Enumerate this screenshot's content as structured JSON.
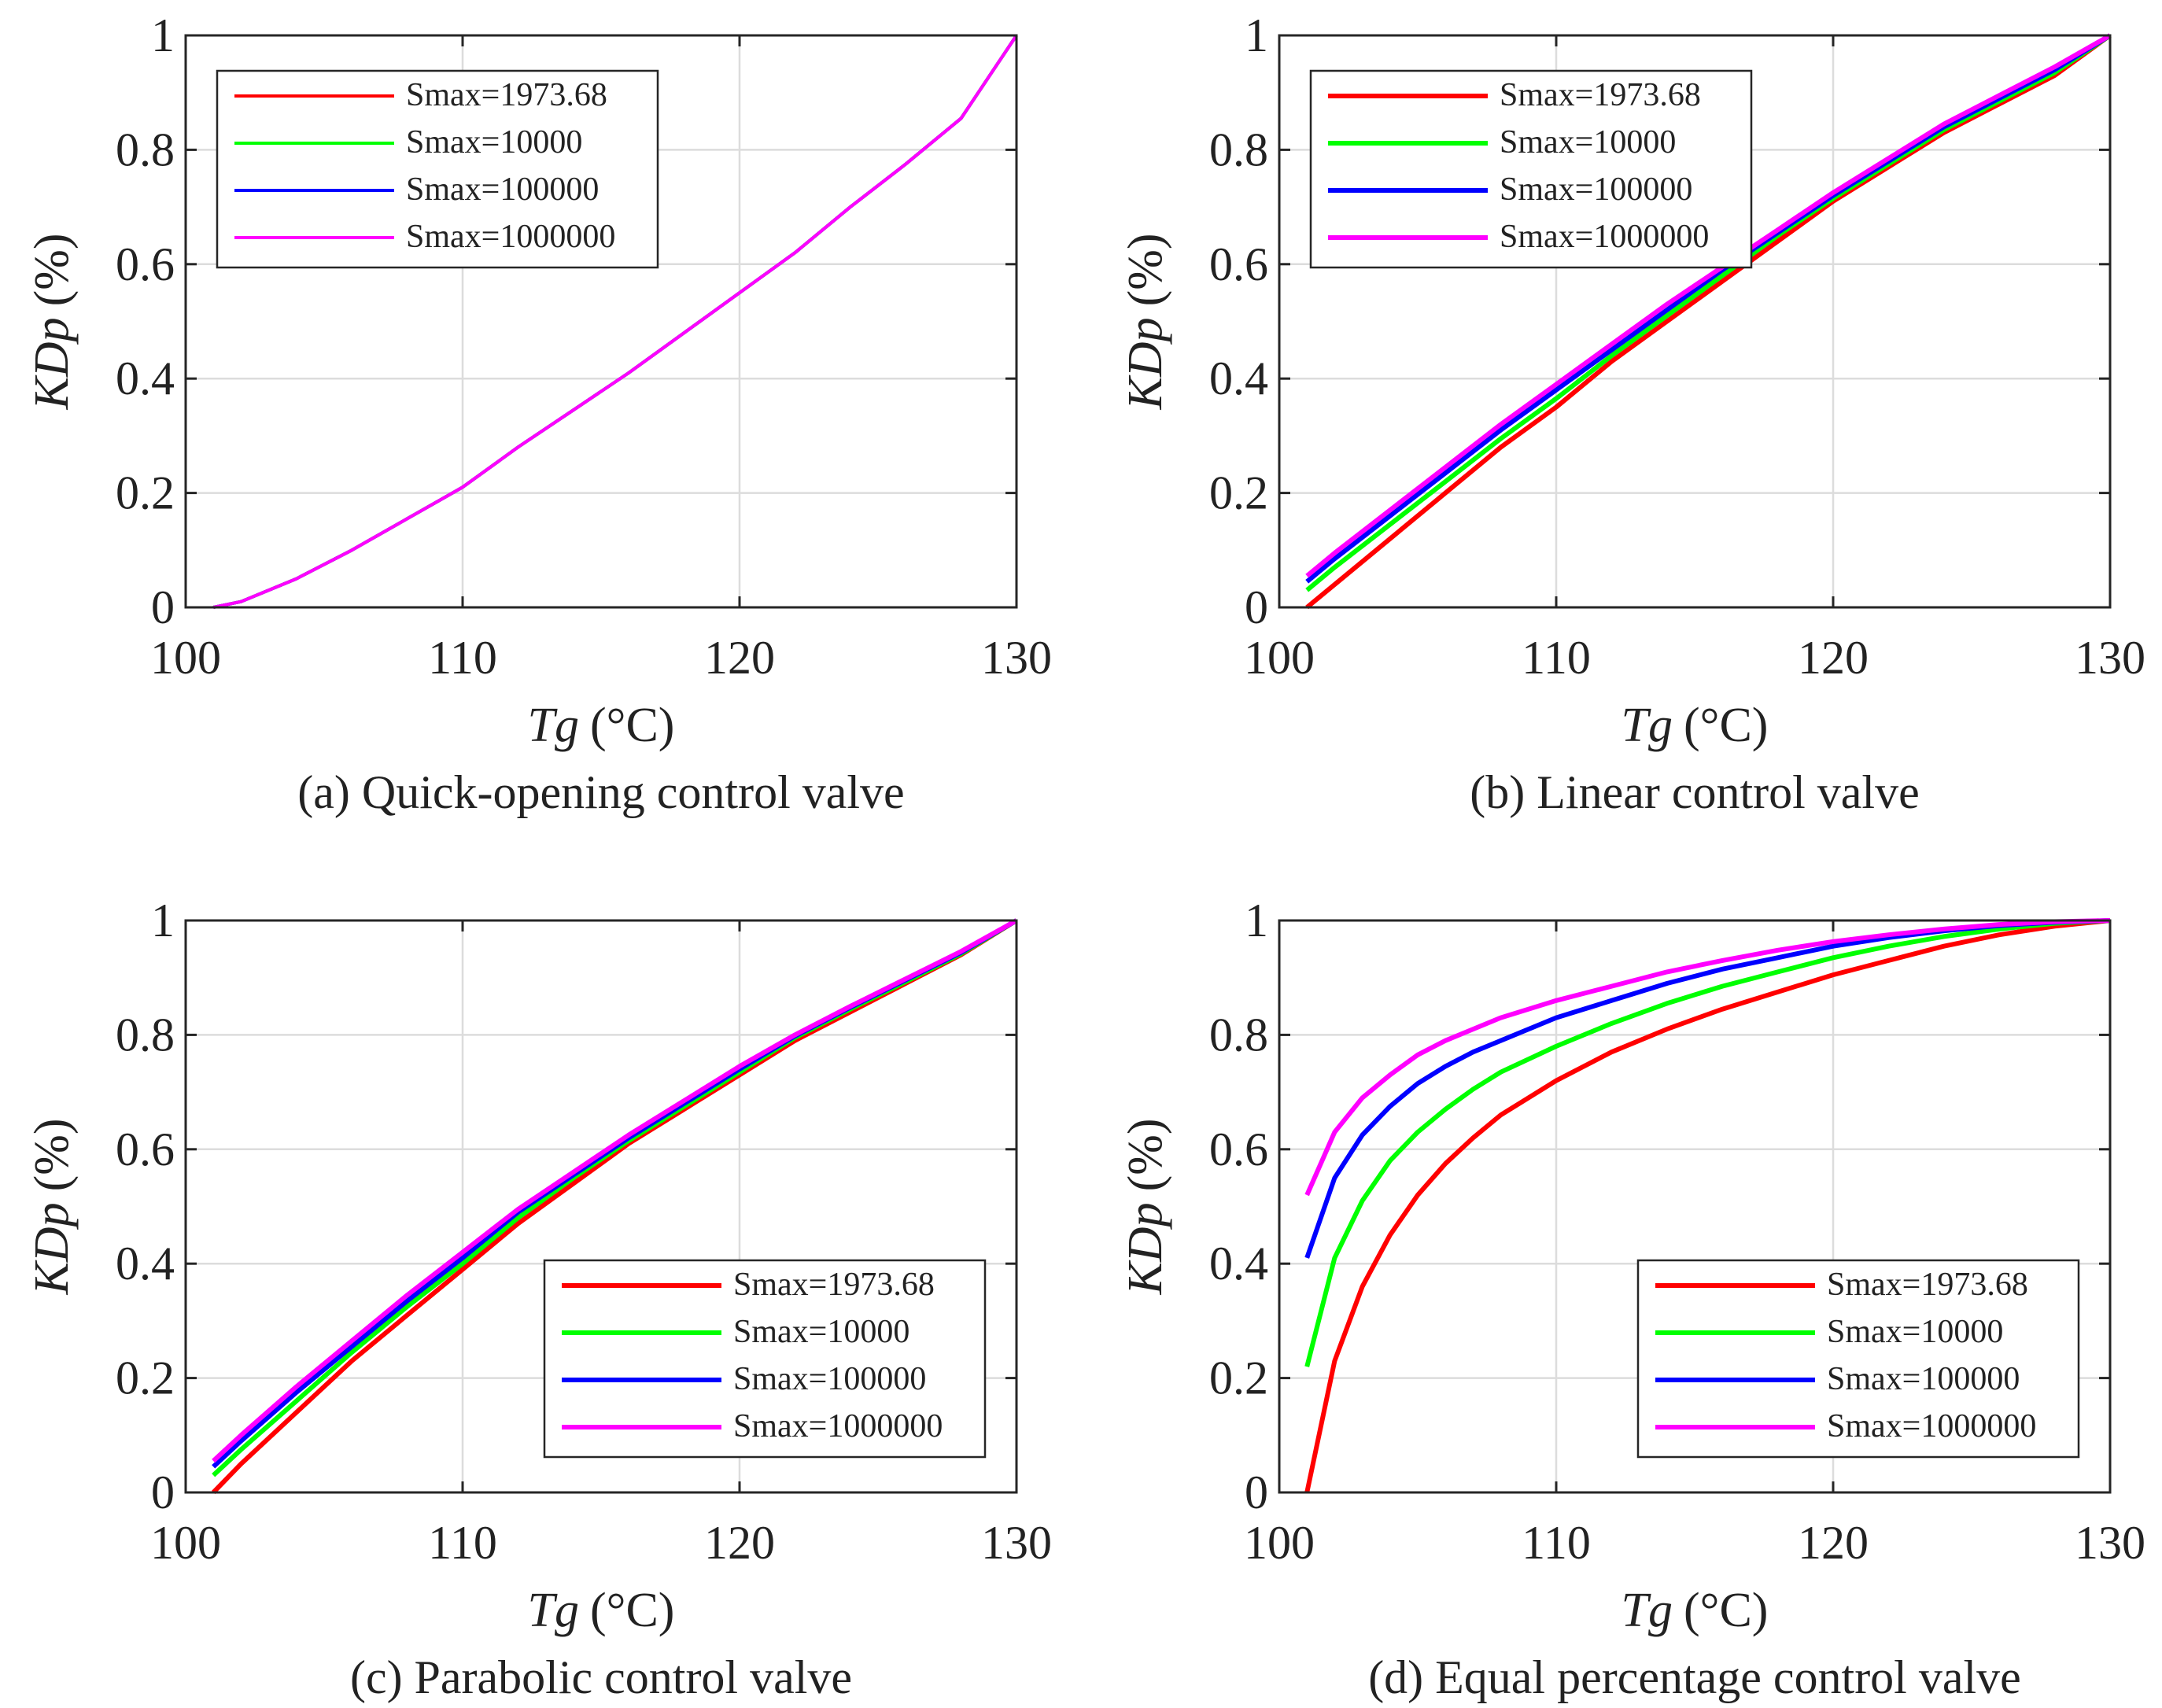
{
  "chart_data": [
    {
      "type": "line",
      "caption": "(a) Quick-opening control valve",
      "xlabel": "Tg",
      "xunit": "(°C)",
      "ylabel": "KDp",
      "yunit": "(%)",
      "xlim": [
        100,
        130
      ],
      "ylim": [
        0,
        1
      ],
      "xticks": [
        "100",
        "110",
        "120",
        "130"
      ],
      "yticks": [
        "0",
        "0.2",
        "0.4",
        "0.6",
        "0.8",
        "1"
      ],
      "grid": true,
      "legend_position": "top-left",
      "series": [
        {
          "name": "Smax=1973.68",
          "color": "#ff0000",
          "x": [
            101,
            102,
            104,
            106,
            108,
            110,
            112,
            114,
            116,
            118,
            120,
            122,
            124,
            126,
            128,
            130
          ],
          "y": [
            0,
            0.01,
            0.05,
            0.1,
            0.155,
            0.21,
            0.28,
            0.345,
            0.41,
            0.48,
            0.55,
            0.62,
            0.7,
            0.775,
            0.855,
            1
          ]
        },
        {
          "name": "Smax=10000",
          "color": "#00ff00",
          "x": [
            101,
            102,
            104,
            106,
            108,
            110,
            112,
            114,
            116,
            118,
            120,
            122,
            124,
            126,
            128,
            130
          ],
          "y": [
            0,
            0.01,
            0.05,
            0.1,
            0.155,
            0.21,
            0.28,
            0.345,
            0.41,
            0.48,
            0.55,
            0.62,
            0.7,
            0.775,
            0.855,
            1
          ]
        },
        {
          "name": "Smax=100000",
          "color": "#0000ff",
          "x": [
            101,
            102,
            104,
            106,
            108,
            110,
            112,
            114,
            116,
            118,
            120,
            122,
            124,
            126,
            128,
            130
          ],
          "y": [
            0,
            0.01,
            0.05,
            0.1,
            0.155,
            0.21,
            0.28,
            0.345,
            0.41,
            0.48,
            0.55,
            0.62,
            0.7,
            0.775,
            0.855,
            1
          ]
        },
        {
          "name": "Smax=1000000",
          "color": "#ff00ff",
          "x": [
            101,
            102,
            104,
            106,
            108,
            110,
            112,
            114,
            116,
            118,
            120,
            122,
            124,
            126,
            128,
            130
          ],
          "y": [
            0,
            0.01,
            0.05,
            0.1,
            0.155,
            0.21,
            0.28,
            0.345,
            0.41,
            0.48,
            0.55,
            0.62,
            0.7,
            0.775,
            0.855,
            1
          ]
        }
      ]
    },
    {
      "type": "line",
      "caption": "(b) Linear control valve",
      "xlabel": "Tg",
      "xunit": "(°C)",
      "ylabel": "KDp",
      "yunit": "(%)",
      "xlim": [
        100,
        130
      ],
      "ylim": [
        0,
        1
      ],
      "xticks": [
        "100",
        "110",
        "120",
        "130"
      ],
      "yticks": [
        "0",
        "0.2",
        "0.4",
        "0.6",
        "0.8",
        "1"
      ],
      "grid": true,
      "legend_position": "top-left",
      "series": [
        {
          "name": "Smax=1973.68",
          "color": "#ff0000",
          "x": [
            101,
            102,
            104,
            106,
            108,
            110,
            112,
            114,
            116,
            118,
            120,
            122,
            124,
            126,
            128,
            130
          ],
          "y": [
            0,
            0.04,
            0.12,
            0.2,
            0.28,
            0.35,
            0.43,
            0.5,
            0.57,
            0.64,
            0.71,
            0.77,
            0.83,
            0.88,
            0.93,
            1
          ]
        },
        {
          "name": "Smax=10000",
          "color": "#00ff00",
          "x": [
            101,
            102,
            104,
            106,
            108,
            110,
            112,
            114,
            116,
            118,
            120,
            122,
            124,
            126,
            128,
            130
          ],
          "y": [
            0.03,
            0.07,
            0.145,
            0.22,
            0.295,
            0.365,
            0.44,
            0.51,
            0.58,
            0.65,
            0.715,
            0.775,
            0.835,
            0.885,
            0.935,
            1
          ]
        },
        {
          "name": "Smax=100000",
          "color": "#0000ff",
          "x": [
            101,
            102,
            104,
            106,
            108,
            110,
            112,
            114,
            116,
            118,
            120,
            122,
            124,
            126,
            128,
            130
          ],
          "y": [
            0.045,
            0.085,
            0.16,
            0.235,
            0.31,
            0.38,
            0.45,
            0.52,
            0.59,
            0.655,
            0.72,
            0.78,
            0.84,
            0.89,
            0.94,
            1
          ]
        },
        {
          "name": "Smax=1000000",
          "color": "#ff00ff",
          "x": [
            101,
            102,
            104,
            106,
            108,
            110,
            112,
            114,
            116,
            118,
            120,
            122,
            124,
            126,
            128,
            130
          ],
          "y": [
            0.055,
            0.095,
            0.17,
            0.245,
            0.32,
            0.39,
            0.46,
            0.53,
            0.595,
            0.66,
            0.725,
            0.785,
            0.845,
            0.895,
            0.945,
            1
          ]
        }
      ]
    },
    {
      "type": "line",
      "caption": "(c) Parabolic control valve",
      "xlabel": "Tg",
      "xunit": "(°C)",
      "ylabel": "KDp",
      "yunit": "(%)",
      "xlim": [
        100,
        130
      ],
      "ylim": [
        0,
        1
      ],
      "xticks": [
        "100",
        "110",
        "120",
        "130"
      ],
      "yticks": [
        "0",
        "0.2",
        "0.4",
        "0.6",
        "0.8",
        "1"
      ],
      "grid": true,
      "legend_position": "bottom-right",
      "series": [
        {
          "name": "Smax=1973.68",
          "color": "#ff0000",
          "x": [
            101,
            102,
            104,
            106,
            108,
            110,
            112,
            114,
            116,
            118,
            120,
            122,
            124,
            126,
            128,
            130
          ],
          "y": [
            0,
            0.05,
            0.14,
            0.23,
            0.31,
            0.39,
            0.47,
            0.54,
            0.61,
            0.67,
            0.73,
            0.79,
            0.84,
            0.89,
            0.94,
            1
          ]
        },
        {
          "name": "Smax=10000",
          "color": "#00ff00",
          "x": [
            101,
            102,
            104,
            106,
            108,
            110,
            112,
            114,
            116,
            118,
            120,
            122,
            124,
            126,
            128,
            130
          ],
          "y": [
            0.03,
            0.075,
            0.16,
            0.245,
            0.325,
            0.4,
            0.48,
            0.55,
            0.615,
            0.675,
            0.735,
            0.795,
            0.845,
            0.893,
            0.942,
            1
          ]
        },
        {
          "name": "Smax=100000",
          "color": "#0000ff",
          "x": [
            101,
            102,
            104,
            106,
            108,
            110,
            112,
            114,
            116,
            118,
            120,
            122,
            124,
            126,
            128,
            130
          ],
          "y": [
            0.045,
            0.09,
            0.175,
            0.255,
            0.335,
            0.41,
            0.49,
            0.555,
            0.62,
            0.68,
            0.74,
            0.798,
            0.848,
            0.896,
            0.944,
            1
          ]
        },
        {
          "name": "Smax=1000000",
          "color": "#ff00ff",
          "x": [
            101,
            102,
            104,
            106,
            108,
            110,
            112,
            114,
            116,
            118,
            120,
            122,
            124,
            126,
            128,
            130
          ],
          "y": [
            0.055,
            0.1,
            0.185,
            0.265,
            0.345,
            0.42,
            0.495,
            0.56,
            0.625,
            0.685,
            0.745,
            0.8,
            0.85,
            0.898,
            0.946,
            1
          ]
        }
      ]
    },
    {
      "type": "line",
      "caption": "(d) Equal percentage control valve",
      "xlabel": "Tg",
      "xunit": "(°C)",
      "ylabel": "KDp",
      "yunit": "(%)",
      "xlim": [
        100,
        130
      ],
      "ylim": [
        0,
        1
      ],
      "xticks": [
        "100",
        "110",
        "120",
        "130"
      ],
      "yticks": [
        "0",
        "0.2",
        "0.4",
        "0.6",
        "0.8",
        "1"
      ],
      "grid": true,
      "legend_position": "bottom-right",
      "series": [
        {
          "name": "Smax=1973.68",
          "color": "#ff0000",
          "x": [
            101,
            102,
            103,
            104,
            105,
            106,
            107,
            108,
            110,
            112,
            114,
            116,
            118,
            120,
            122,
            124,
            126,
            128,
            130
          ],
          "y": [
            0,
            0.23,
            0.36,
            0.45,
            0.52,
            0.575,
            0.62,
            0.66,
            0.72,
            0.77,
            0.81,
            0.845,
            0.875,
            0.905,
            0.93,
            0.955,
            0.975,
            0.99,
            1
          ]
        },
        {
          "name": "Smax=10000",
          "color": "#00ff00",
          "x": [
            101,
            102,
            103,
            104,
            105,
            106,
            107,
            108,
            110,
            112,
            114,
            116,
            118,
            120,
            122,
            124,
            126,
            128,
            130
          ],
          "y": [
            0.22,
            0.41,
            0.51,
            0.58,
            0.63,
            0.67,
            0.705,
            0.735,
            0.78,
            0.82,
            0.855,
            0.885,
            0.91,
            0.935,
            0.955,
            0.972,
            0.985,
            0.995,
            1
          ]
        },
        {
          "name": "Smax=100000",
          "color": "#0000ff",
          "x": [
            101,
            102,
            103,
            104,
            105,
            106,
            107,
            108,
            110,
            112,
            114,
            116,
            118,
            120,
            122,
            124,
            126,
            128,
            130
          ],
          "y": [
            0.41,
            0.55,
            0.625,
            0.675,
            0.715,
            0.745,
            0.77,
            0.79,
            0.83,
            0.86,
            0.89,
            0.915,
            0.935,
            0.955,
            0.97,
            0.982,
            0.991,
            0.997,
            1
          ]
        },
        {
          "name": "Smax=1000000",
          "color": "#ff00ff",
          "x": [
            101,
            102,
            103,
            104,
            105,
            106,
            107,
            108,
            110,
            112,
            114,
            116,
            118,
            120,
            122,
            124,
            126,
            128,
            130
          ],
          "y": [
            0.52,
            0.63,
            0.69,
            0.73,
            0.765,
            0.79,
            0.81,
            0.83,
            0.86,
            0.885,
            0.91,
            0.93,
            0.948,
            0.963,
            0.975,
            0.985,
            0.993,
            0.998,
            1
          ]
        }
      ]
    }
  ]
}
